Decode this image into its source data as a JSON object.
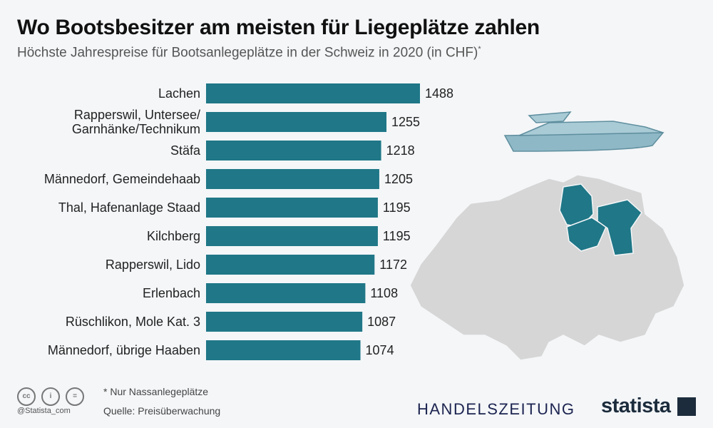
{
  "title": "Wo Bootsbesitzer am meisten für Liegeplätze zahlen",
  "subtitle": "Höchste Jahrespreise für Bootsanlegeplätze in der Schweiz in 2020 (in CHF)",
  "subtitle_mark": "*",
  "footnote": "* Nur Nassanlegeplätze",
  "source": "Quelle: Preisüberwachung",
  "handle": "@Statista_com",
  "partner_logo": "HANDELSZEITUNG",
  "brand_logo": "statista",
  "license_icons": [
    "cc-icon",
    "by-icon",
    "nd-icon"
  ],
  "colors": {
    "bar": "#1f7787",
    "map": "#d4d4d4",
    "map_highlight": "#1f7787",
    "boat": "#8fb8c6"
  },
  "chart_data": {
    "type": "bar",
    "orientation": "horizontal",
    "categories": [
      "Lachen",
      "Rapperswil, Untersee/ Garnhänke/Technikum",
      "Stäfa",
      "Männedorf, Gemeindehaab",
      "Thal, Hafenanlage Staad",
      "Kilchberg",
      "Rapperswil, Lido",
      "Erlenbach",
      "Rüschlikon, Mole Kat. 3",
      "Männedorf, übrige Haaben"
    ],
    "values": [
      1488,
      1255,
      1218,
      1205,
      1195,
      1195,
      1172,
      1108,
      1087,
      1074
    ],
    "xlim": [
      0,
      1488
    ],
    "grid": false
  }
}
